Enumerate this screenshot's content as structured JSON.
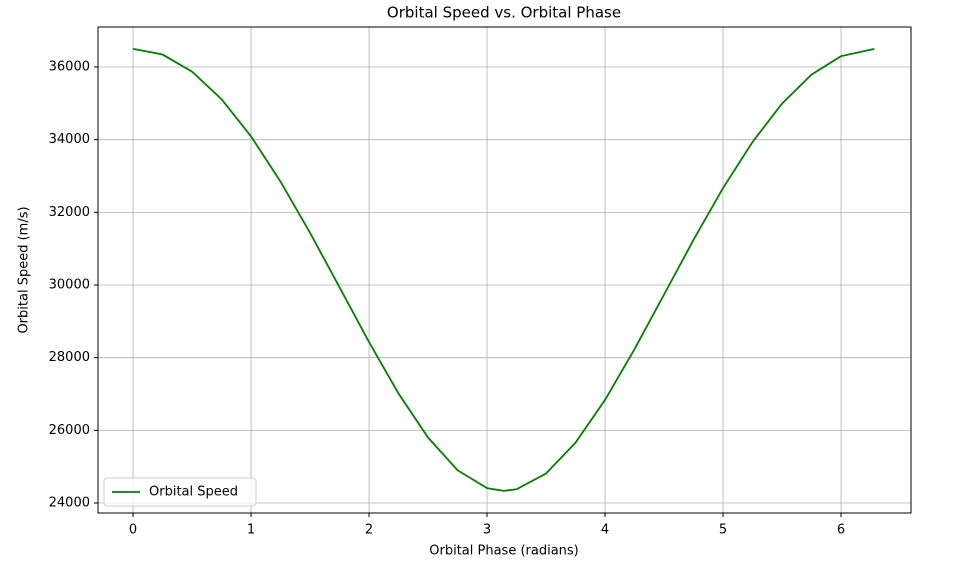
{
  "chart_data": {
    "type": "line",
    "title": "Orbital Speed vs. Orbital Phase",
    "x_label": "Orbital Phase (radians)",
    "y_label": "Orbital Speed (m/s)",
    "x": [
      0,
      0.25,
      0.5,
      0.75,
      1.0,
      1.25,
      1.5,
      1.75,
      2.0,
      2.25,
      2.5,
      2.75,
      3.0,
      3.1416,
      3.25,
      3.5,
      3.75,
      4.0,
      4.25,
      4.5,
      4.75,
      5.0,
      5.25,
      5.5,
      5.75,
      6.0,
      6.283
    ],
    "series": [
      {
        "name": "Orbital Speed",
        "color": "#008000",
        "values": [
          36500,
          36343,
          35874,
          35114,
          34090,
          32846,
          31438,
          29937,
          28429,
          27014,
          25802,
          24902,
          24410,
          24334,
          24378,
          24812,
          25662,
          26838,
          28234,
          29735,
          31243,
          32668,
          33937,
          34992,
          35790,
          36298,
          36500
        ]
      }
    ],
    "xlim": [
      -0.297,
      6.593
    ],
    "xticks": [
      0,
      1,
      2,
      3,
      4,
      5,
      6
    ],
    "ylim": [
      23725,
      37101
    ],
    "yticks": [
      24000,
      26000,
      28000,
      30000,
      32000,
      34000,
      36000
    ],
    "grid": true,
    "legend": "lower left"
  }
}
